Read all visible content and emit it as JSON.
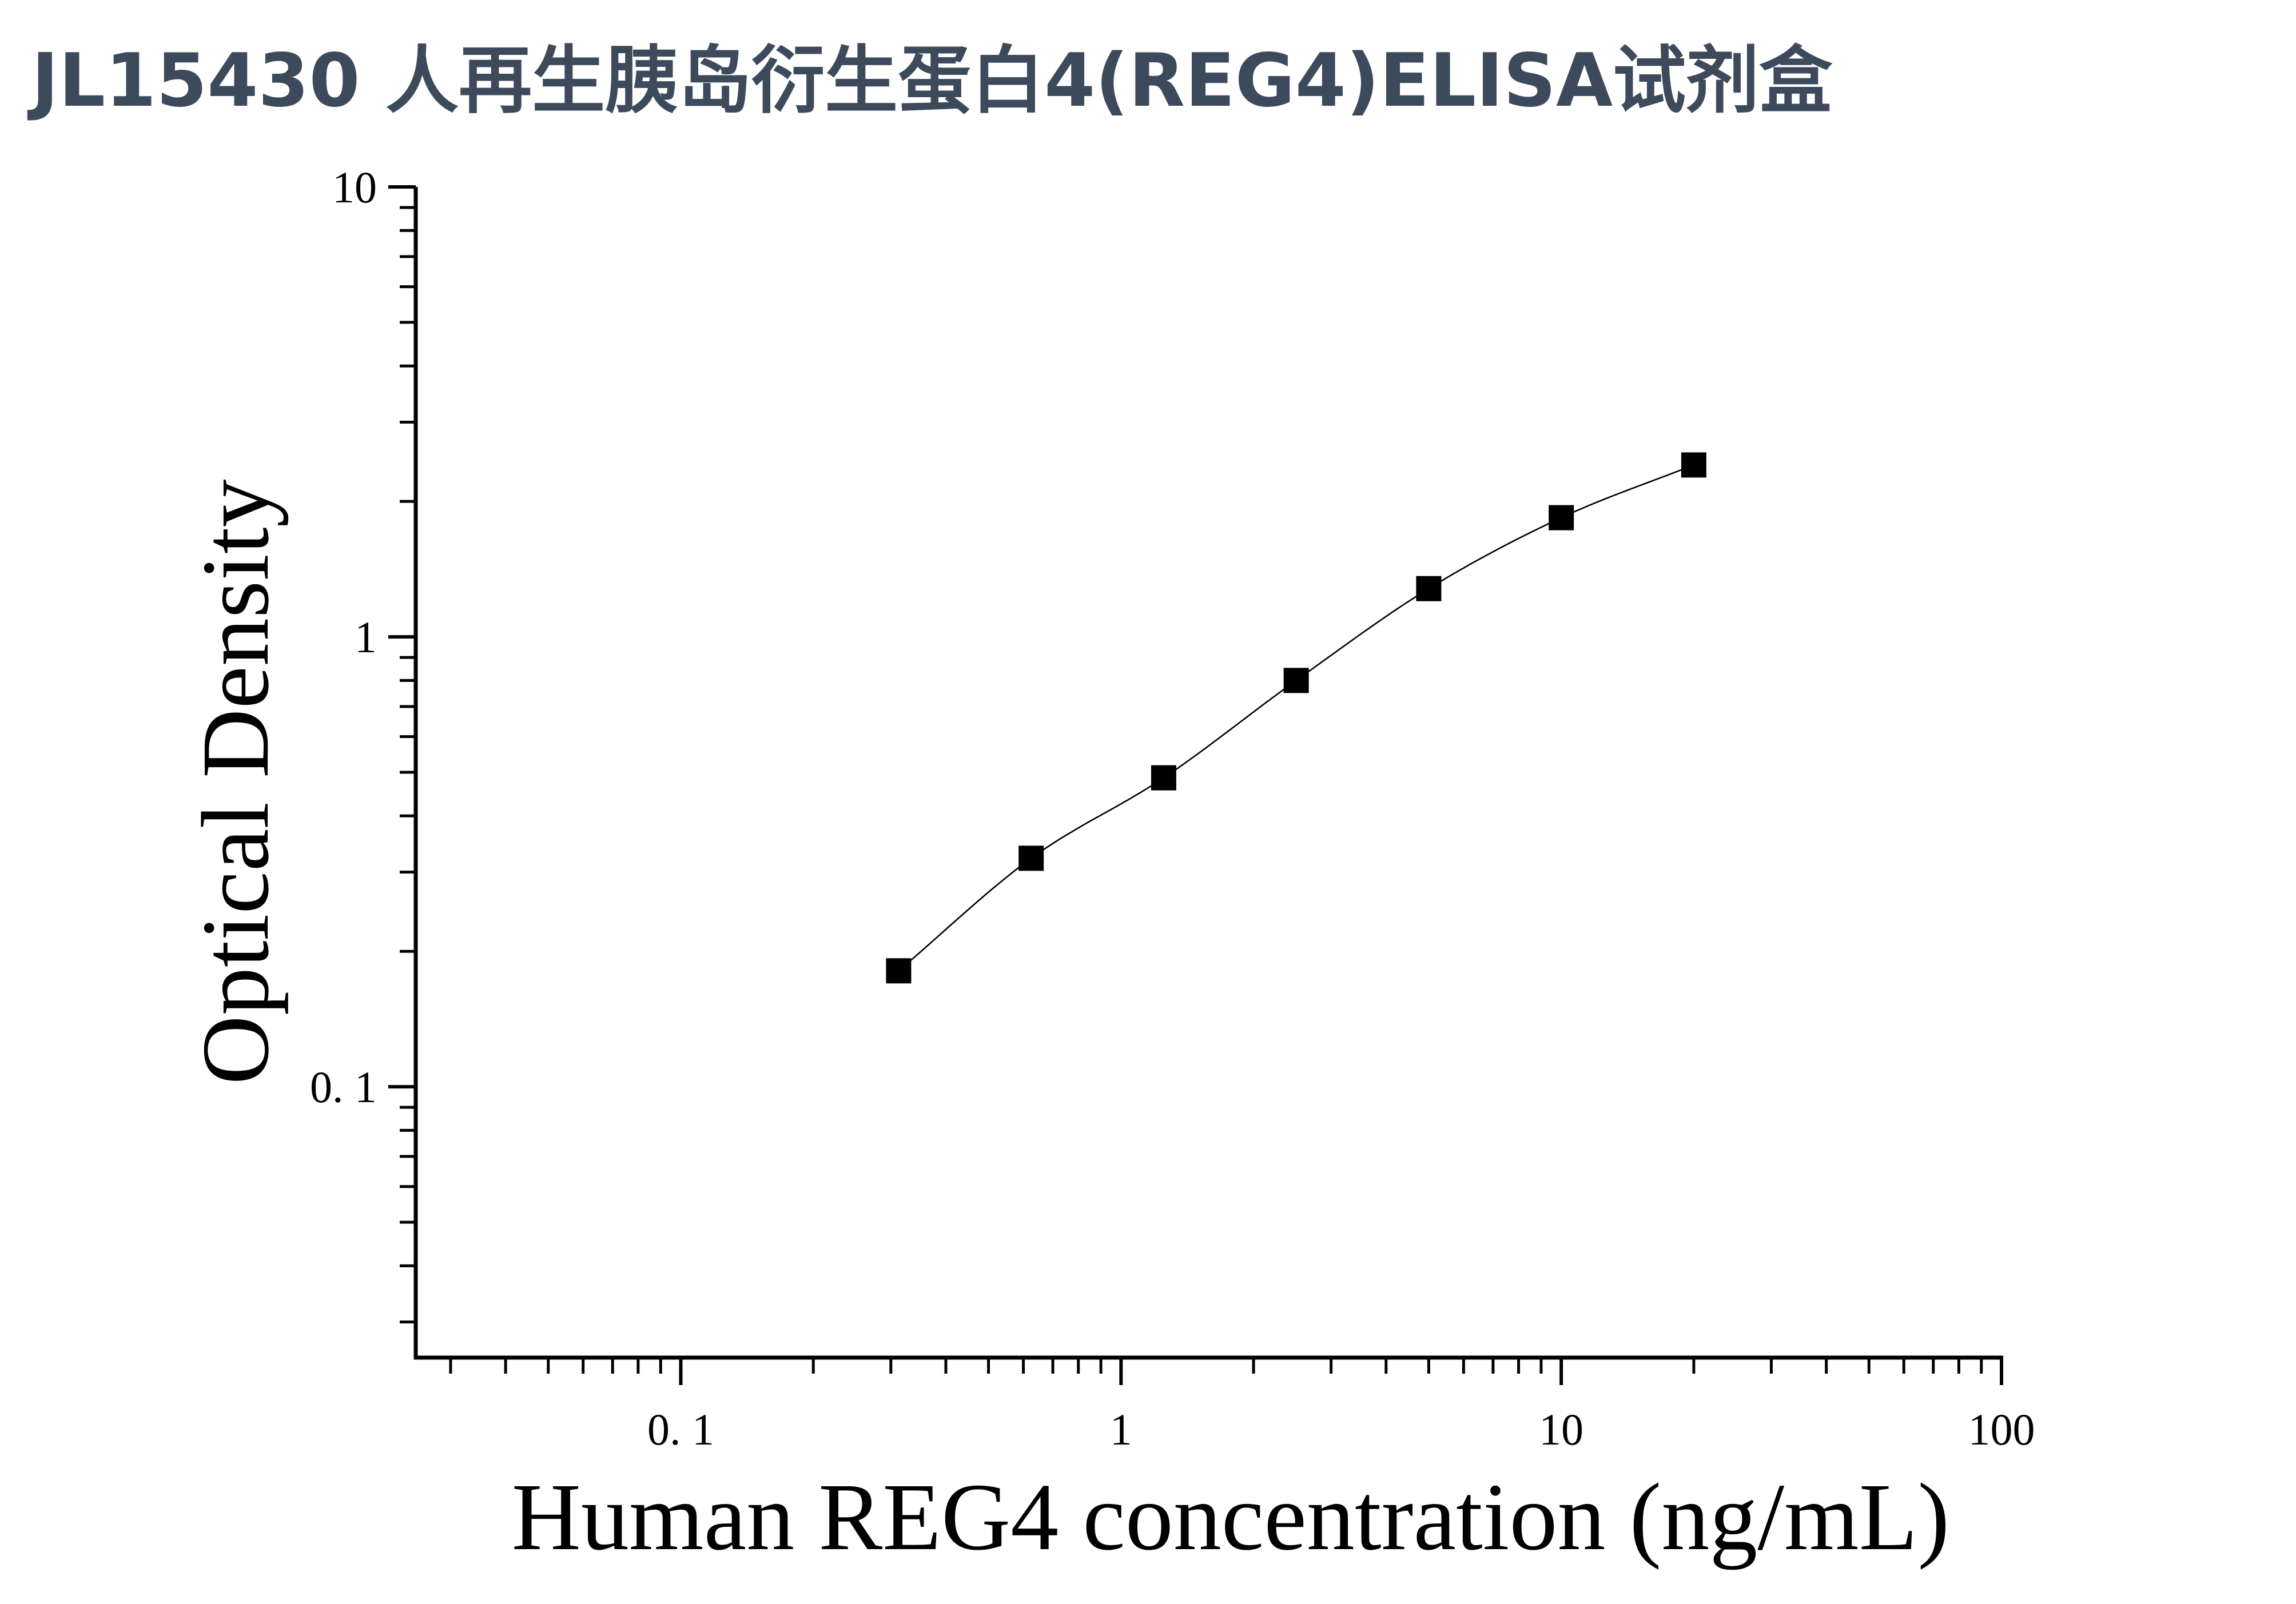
{
  "chart_data": {
    "type": "scatter",
    "title": "JL15430 人再生胰岛衍生蛋白4(REG4)ELISA试剂盒",
    "xlabel": "Human REG4 concentration (ng/mL)",
    "ylabel": "Optical Density",
    "x_scale": "log",
    "y_scale": "log",
    "xlim": [
      0.025,
      100
    ],
    "ylim": [
      0.025,
      10
    ],
    "x_ticks": [
      {
        "value": 0.1,
        "label": "0. 1"
      },
      {
        "value": 1,
        "label": "1"
      },
      {
        "value": 10,
        "label": "10"
      },
      {
        "value": 100,
        "label": "100"
      }
    ],
    "y_ticks": [
      {
        "value": 0.1,
        "label": "0. 1"
      },
      {
        "value": 1,
        "label": "1"
      },
      {
        "value": 10,
        "label": "10"
      }
    ],
    "grid": false,
    "legend": "none",
    "series": [
      {
        "marker": "square",
        "color": "#000000",
        "x": [
          0.3125,
          0.625,
          1.25,
          2.5,
          5,
          10,
          20
        ],
        "y": [
          0.181,
          0.322,
          0.486,
          0.8,
          1.28,
          1.84,
          2.41
        ]
      }
    ],
    "fit_curve": {
      "color": "#000000"
    },
    "title_color": "#3d4a5c"
  }
}
